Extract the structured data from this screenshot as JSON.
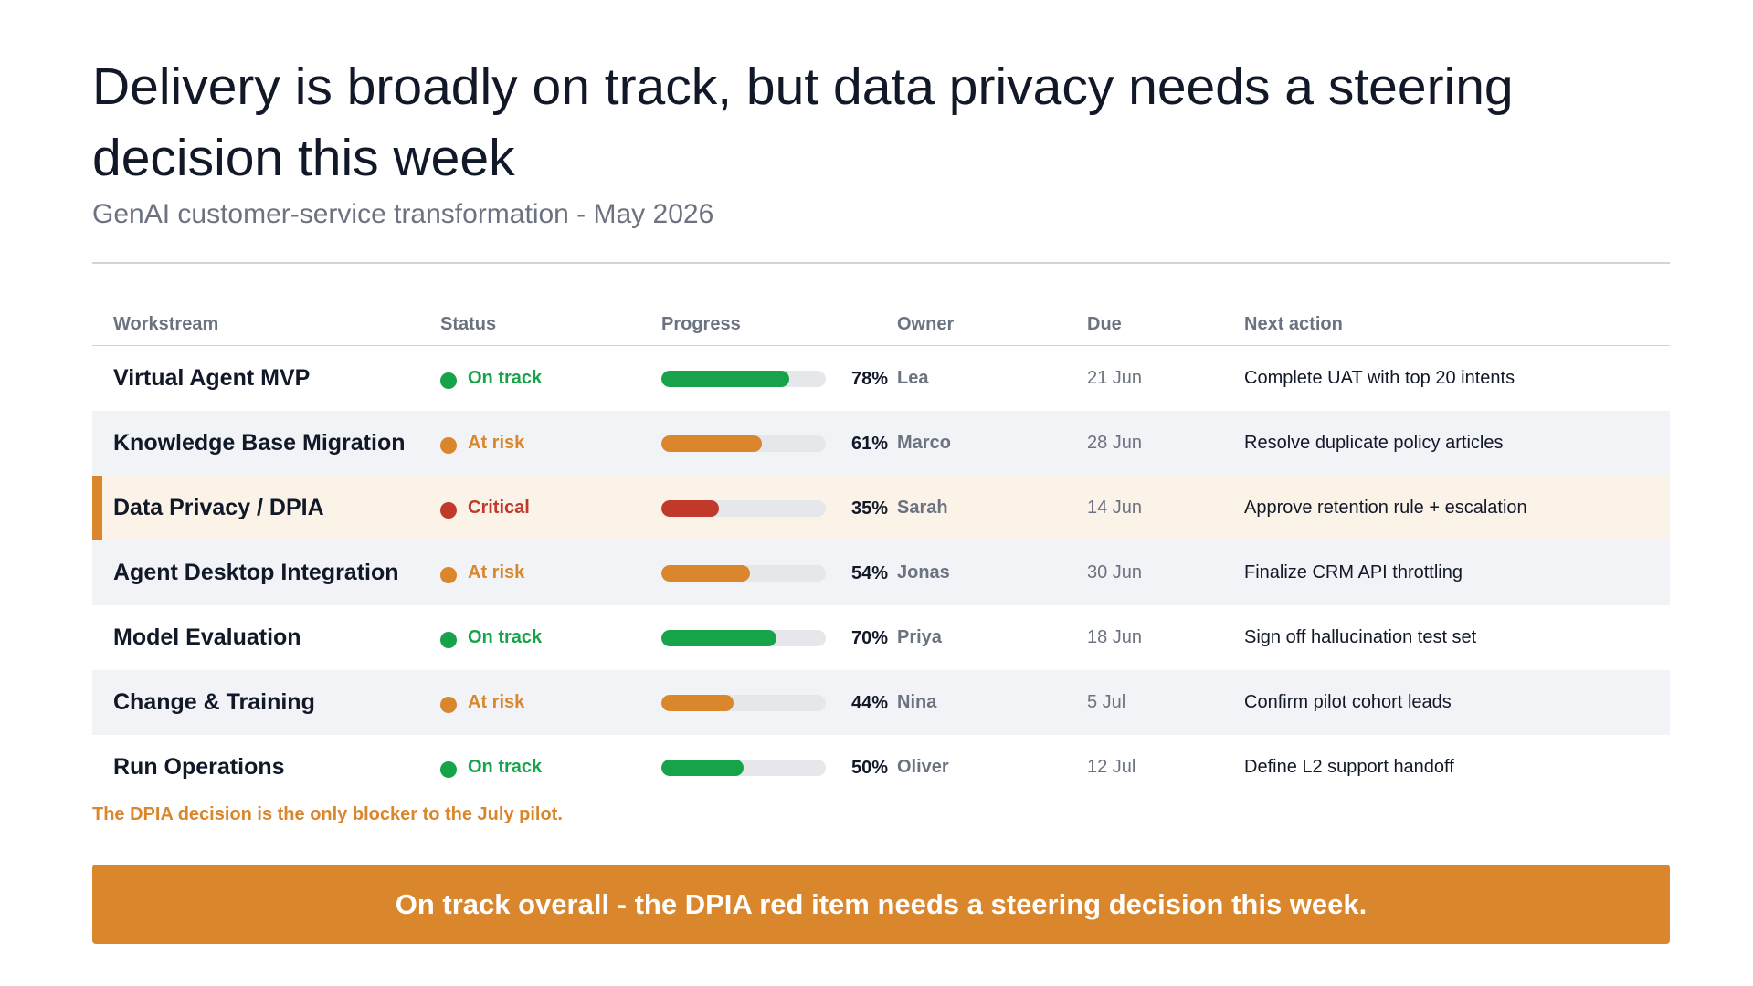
{
  "header": {
    "title": "Delivery is broadly on track, but data privacy needs a steering decision this week",
    "subtitle": "GenAI customer-service transformation - May 2026"
  },
  "table": {
    "columns": [
      "Workstream",
      "Status",
      "Progress",
      "Owner",
      "Due",
      "Next action"
    ],
    "rows": [
      {
        "workstream": "Virtual Agent MVP",
        "status": "On track",
        "status_level": "green",
        "progress": 78,
        "progress_label": "78%",
        "owner": "Lea",
        "due": "21 Jun",
        "next_action": "Complete UAT with top 20 intents"
      },
      {
        "workstream": "Knowledge Base Migration",
        "status": "At risk",
        "status_level": "amber",
        "progress": 61,
        "progress_label": "61%",
        "owner": "Marco",
        "due": "28 Jun",
        "next_action": "Resolve duplicate policy articles"
      },
      {
        "workstream": "Data Privacy / DPIA",
        "status": "Critical",
        "status_level": "red",
        "progress": 35,
        "progress_label": "35%",
        "owner": "Sarah",
        "due": "14 Jun",
        "next_action": "Approve retention rule + escalation"
      },
      {
        "workstream": "Agent Desktop Integration",
        "status": "At risk",
        "status_level": "amber",
        "progress": 54,
        "progress_label": "54%",
        "owner": "Jonas",
        "due": "30 Jun",
        "next_action": "Finalize CRM API throttling"
      },
      {
        "workstream": "Model Evaluation",
        "status": "On track",
        "status_level": "green",
        "progress": 70,
        "progress_label": "70%",
        "owner": "Priya",
        "due": "18 Jun",
        "next_action": "Sign off hallucination test set"
      },
      {
        "workstream": "Change & Training",
        "status": "At risk",
        "status_level": "amber",
        "progress": 44,
        "progress_label": "44%",
        "owner": "Nina",
        "due": "5 Jul",
        "next_action": "Confirm pilot cohort leads"
      },
      {
        "workstream": "Run Operations",
        "status": "On track",
        "status_level": "green",
        "progress": 50,
        "progress_label": "50%",
        "owner": "Oliver",
        "due": "12 Jul",
        "next_action": "Define L2 support handoff"
      }
    ]
  },
  "note": "The DPIA decision is the only blocker to the July pilot.",
  "banner": "On track overall - the DPIA red item needs a steering decision this week.",
  "colors": {
    "green": "#16a34a",
    "amber": "#d9862d",
    "red": "#c0392b",
    "accent": "#d9862d",
    "critical_row_bg": "#fbf3e8",
    "alt_row_bg": "#f1f3f6"
  }
}
